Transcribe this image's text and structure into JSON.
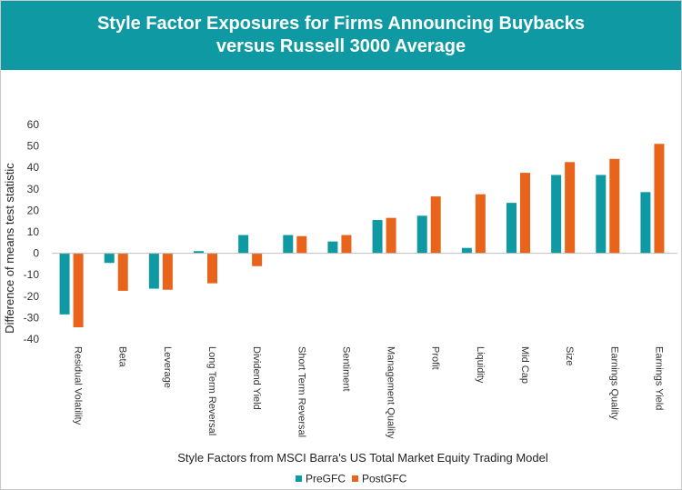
{
  "header": {
    "title_line1": "Style Factor Exposures for Firms Announcing Buybacks",
    "title_line2": "versus Russell 3000 Average"
  },
  "chart_data": {
    "type": "bar",
    "title": "Style Factor Exposures for Firms Announcing Buybacks versus Russell 3000 Average",
    "xlabel": "Style Factors from MSCI Barra's US Total Market Equity Trading Model",
    "ylabel": "Difference of means test statistic",
    "ylim": [
      -40,
      60
    ],
    "yticks": [
      -40,
      -30,
      -20,
      -10,
      0,
      10,
      20,
      30,
      40,
      50,
      60
    ],
    "grid": false,
    "legend_position": "bottom",
    "categories": [
      "Residual Volatility",
      "Beta",
      "Leverage",
      "Long Term Reversal",
      "Dividend Yield",
      "Short Term Reversal",
      "Sentiment",
      "Management Quality",
      "Profit",
      "Liquidity",
      "Mid Cap",
      "Size",
      "Earnings Quality",
      "Earnings Yield"
    ],
    "series": [
      {
        "name": "PreGFC",
        "color": "#0f9aa3",
        "values": [
          -28.5,
          -4.5,
          -16.5,
          1,
          8.5,
          8.5,
          5.5,
          15.5,
          17.5,
          2.5,
          23.5,
          36.5,
          36.5,
          28.5
        ]
      },
      {
        "name": "PostGFC",
        "color": "#e8641b",
        "values": [
          -34.5,
          -17.5,
          -17,
          -14,
          -6,
          8,
          8.5,
          16.5,
          26.5,
          27.5,
          37.5,
          42.5,
          44,
          51
        ]
      }
    ]
  }
}
